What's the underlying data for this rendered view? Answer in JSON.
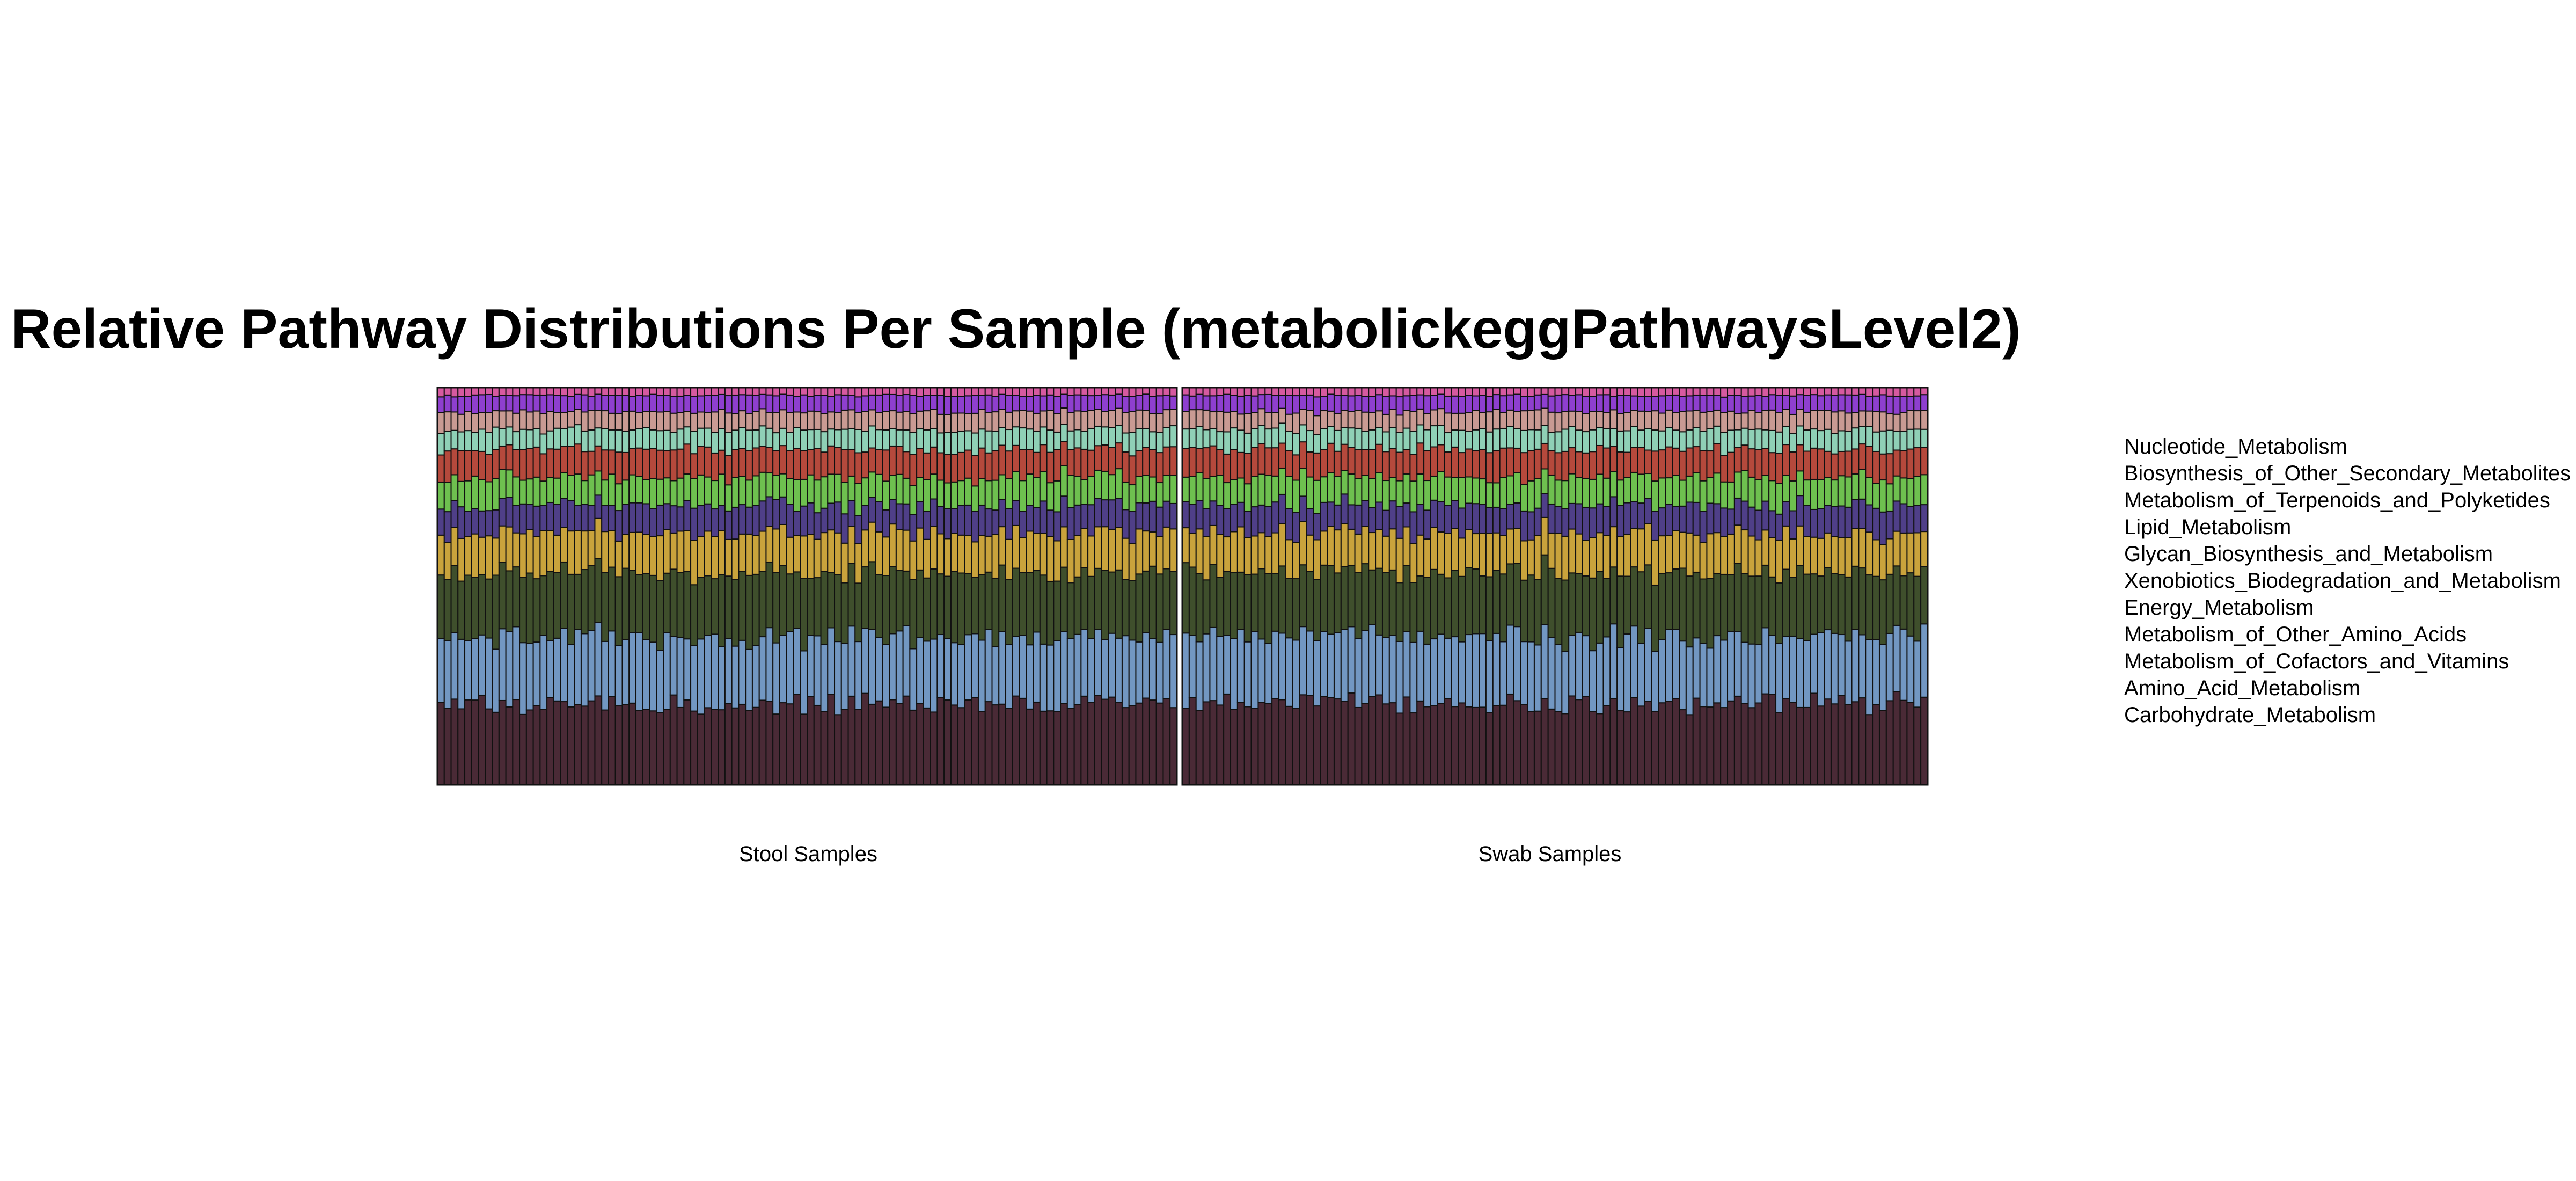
{
  "chart_data": {
    "type": "bar",
    "stacked": true,
    "normalized": true,
    "title": "Relative Pathway Distributions Per Sample (metabolickeggPathwaysLevel2)",
    "ylim": [
      0,
      1
    ],
    "legend_position": "right",
    "panels": [
      {
        "label": "Stool Samples",
        "n_samples": 108
      },
      {
        "label": "Swab Samples",
        "n_samples": 108
      }
    ],
    "series": [
      {
        "name": "Carbohydrate_Metabolism",
        "color": "#4a2a36",
        "value": 0.205
      },
      {
        "name": "Amino_Acid_Metabolism",
        "color": "#7297c2",
        "value": 0.17
      },
      {
        "name": "Metabolism_of_Cofactors_and_Vitamins",
        "color": "#3f4f2c",
        "value": 0.16
      },
      {
        "name": "Metabolism_of_Other_Amino_Acids",
        "color": "#c9a33c",
        "value": 0.1
      },
      {
        "name": "Energy_Metabolism",
        "color": "#4f3f88",
        "value": 0.07
      },
      {
        "name": "Xenobiotics_Biodegradation_and_Metabolism",
        "color": "#6ec04f",
        "value": 0.07
      },
      {
        "name": "Glycan_Biosynthesis_and_Metabolism",
        "color": "#b5493c",
        "value": 0.07
      },
      {
        "name": "Lipid_Metabolism",
        "color": "#8fd0b6",
        "value": 0.05
      },
      {
        "name": "Metabolism_of_Terpenoids_and_Polyketides",
        "color": "#c99a93",
        "value": 0.045
      },
      {
        "name": "Biosynthesis_of_Other_Secondary_Metabolites",
        "color": "#8e3fcf",
        "value": 0.04
      },
      {
        "name": "Nucleotide_Metabolism",
        "color": "#d65aa0",
        "value": 0.02
      }
    ]
  }
}
